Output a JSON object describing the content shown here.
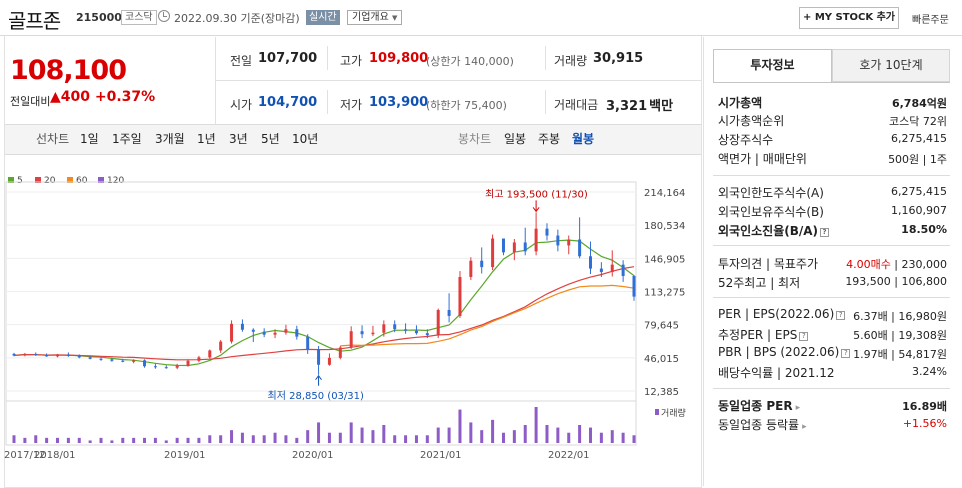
{
  "header": {
    "name": "골프존",
    "code": "215000",
    "market": "코스닥",
    "date": "2022.09.30 기준(장마감)",
    "realtime": "실시간",
    "company_overview": "기업개요",
    "my_stock": "+ MY STOCK 추가",
    "quick_order": "빠른주문"
  },
  "price": {
    "current": "108,100",
    "change_label": "전일대비",
    "change": "▲400",
    "rate": "+0.37%"
  },
  "quote": {
    "prev_label": "전일",
    "prev": "107,700",
    "high_label": "고가",
    "high": "109,800",
    "upper_limit": "(상한가 140,000)",
    "volume_label": "거래량",
    "volume": "30,915",
    "open_label": "시가",
    "open": "104,700",
    "low_label": "저가",
    "low": "103,900",
    "lower_limit": "(하한가 75,400)",
    "amount_label": "거래대금",
    "amount": "3,321",
    "amount_unit": "백만"
  },
  "periods": {
    "line_label": "선차트",
    "line": [
      "1일",
      "1주일",
      "3개월",
      "1년",
      "3년",
      "5년",
      "10년"
    ],
    "candle_label": "봉차트",
    "candle": [
      "일봉",
      "주봉",
      "월봉"
    ],
    "candle_selected": "월봉"
  },
  "chart_data": {
    "type": "candlestick",
    "title": "",
    "legend": [
      {
        "name": "5",
        "color": "#5aa72b"
      },
      {
        "name": "20",
        "color": "#e04040"
      },
      {
        "name": "60",
        "color": "#f08a1c"
      },
      {
        "name": "120",
        "color": "#8e5cc6"
      }
    ],
    "y_ticks": [
      214164,
      180534,
      146905,
      113275,
      79645,
      46015,
      12385
    ],
    "ylim": [
      12385,
      214164
    ],
    "x_labels": [
      "2017/12",
      "2018/01",
      "2019/01",
      "2020/01",
      "2021/01",
      "2022/01"
    ],
    "high_annotation": "최고 193,500 (11/30)",
    "low_annotation": "최저 28,850 (03/31)",
    "volume_label": "거래량",
    "colors": {
      "up": "#e03c3c",
      "down": "#2f6fd6"
    }
  },
  "info": {
    "tab_active": "투자정보",
    "tab_other": "호가 10단계",
    "rows_a": [
      {
        "label": "시가총액",
        "value": "6,784억원",
        "bold": true
      },
      {
        "label": "시가총액순위",
        "value": "코스닥 72위"
      },
      {
        "label": "상장주식수",
        "value": "6,275,415"
      },
      {
        "label": "액면가 | 매매단위",
        "value": "500원 | 1주"
      }
    ],
    "rows_b": [
      {
        "label": "외국인한도주식수(A)",
        "value": "6,275,415"
      },
      {
        "label": "외국인보유주식수(B)",
        "value": "1,160,907"
      },
      {
        "label": "외국인소진율(B/A)",
        "value": "18.50%",
        "bold": true
      }
    ],
    "opinion_label": "투자의견 | 목표주가",
    "opinion": "4.00매수",
    "target": "| 230,000",
    "w52_label": "52주최고 | 최저",
    "w52": "193,500 | 106,800",
    "per_rows": [
      {
        "label": "PER | EPS(2022.06)",
        "value": "6.37배 | 16,980원"
      },
      {
        "label": "추정PER | EPS",
        "value": "5.60배 | 19,308원"
      },
      {
        "label": "PBR | BPS (2022.06)",
        "value": "1.97배 | 54,817원"
      },
      {
        "label": "배당수익률 | 2021.12",
        "value": "3.24%"
      }
    ],
    "industry_per_label": "동일업종 PER",
    "industry_per": "16.89배",
    "industry_rate_label": "동일업종 등락률",
    "industry_rate": "+1.56%"
  }
}
